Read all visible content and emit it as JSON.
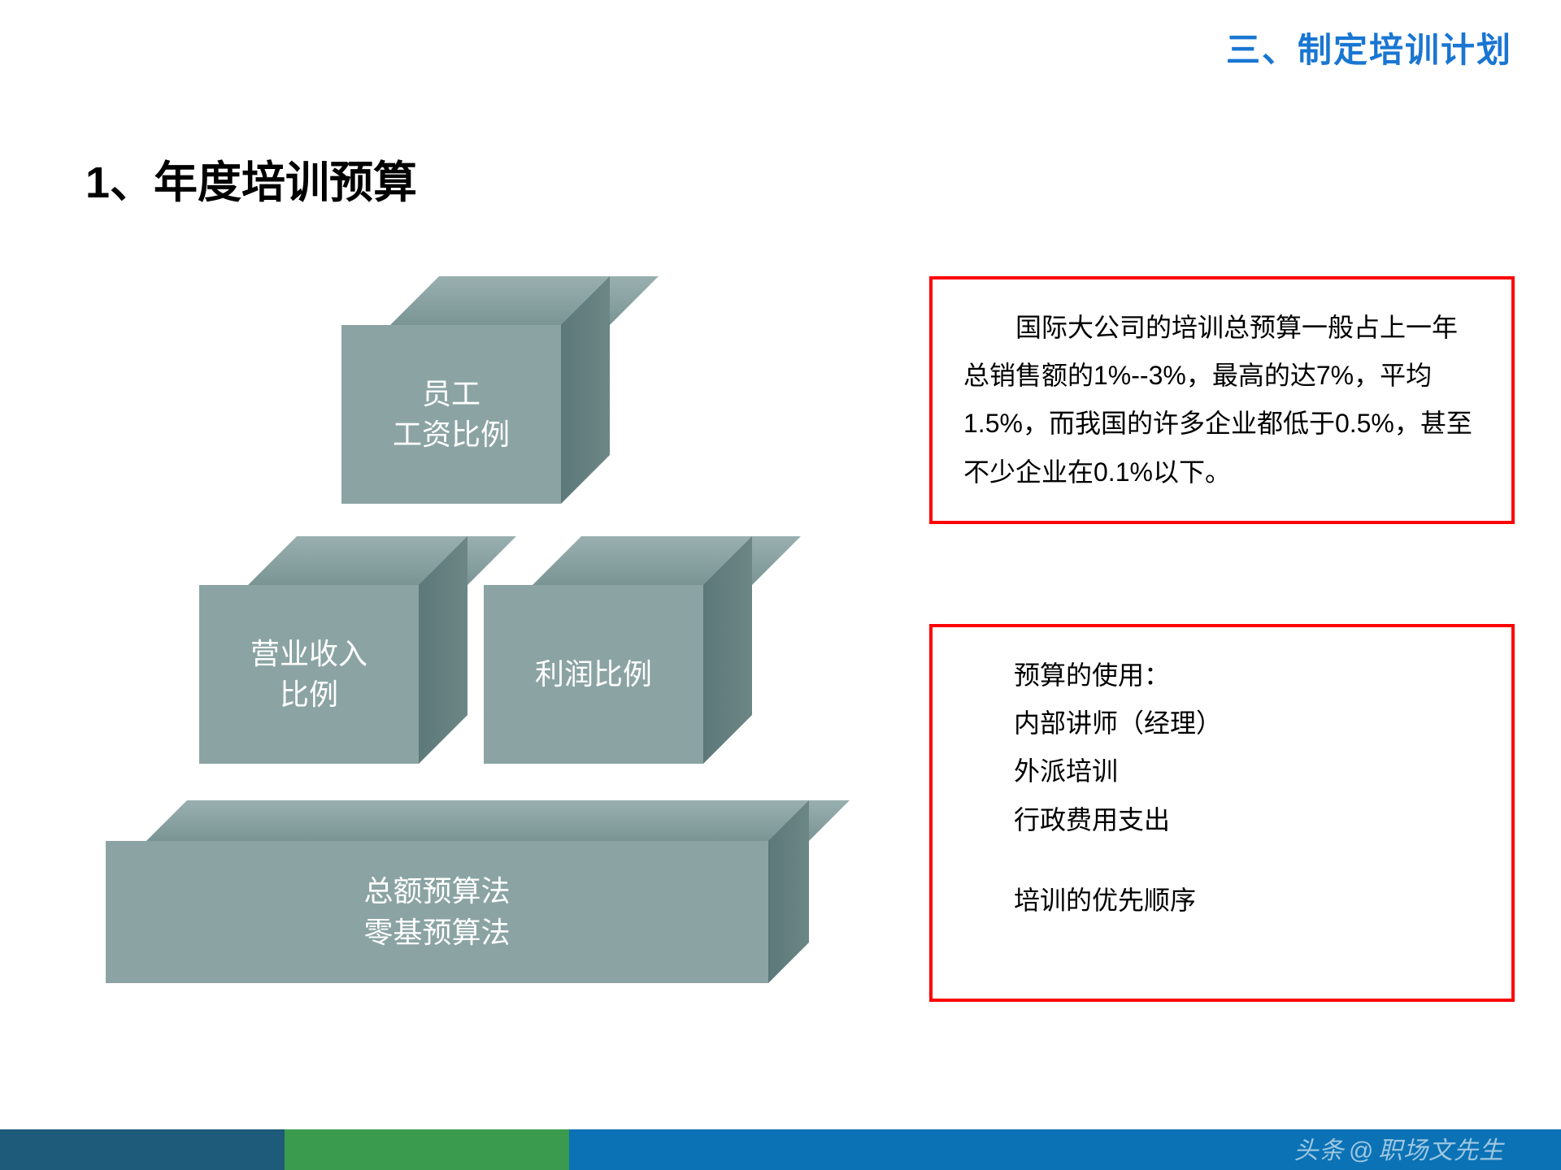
{
  "header": {
    "title": "三、制定培训计划",
    "color": "#1976d2",
    "fontsize": 42
  },
  "section": {
    "title": "1、年度培训预算",
    "color": "#000000",
    "fontsize": 54
  },
  "cubes": {
    "top": {
      "line1": "员工",
      "line2": "工资比例"
    },
    "mid_left": {
      "line1": "营业收入",
      "line2": "比例"
    },
    "mid_right": {
      "label": "利润比例"
    },
    "bottom": {
      "line1": "总额预算法",
      "line2": "零基预算法"
    },
    "front_color": "#8ba3a3",
    "top_color": "#9ab0b0",
    "side_color": "#5c7878",
    "text_color": "#ffffff",
    "fontsize": 36
  },
  "box1": {
    "text": "国际大公司的培训总预算一般占上一年总销售额的1%--3%，最高的达7%，平均1.5%，而我国的许多企业都低于0.5%，甚至不少企业在0.1%以下。",
    "border_color": "#ff0000",
    "fontsize": 32
  },
  "box2": {
    "title": "预算的使用：",
    "items": [
      "内部讲师（经理）",
      "外派培训",
      "行政费用支出"
    ],
    "footer": "培训的优先顺序",
    "border_color": "#ff0000",
    "fontsize": 32
  },
  "bottom_bar": {
    "colors": [
      "#1e5a7a",
      "#3a9b4e",
      "#0b72b5"
    ]
  },
  "watermark": {
    "prefix": "头条",
    "at": "@",
    "author": "职场文先生",
    "color": "rgba(255,255,255,0.6)"
  }
}
